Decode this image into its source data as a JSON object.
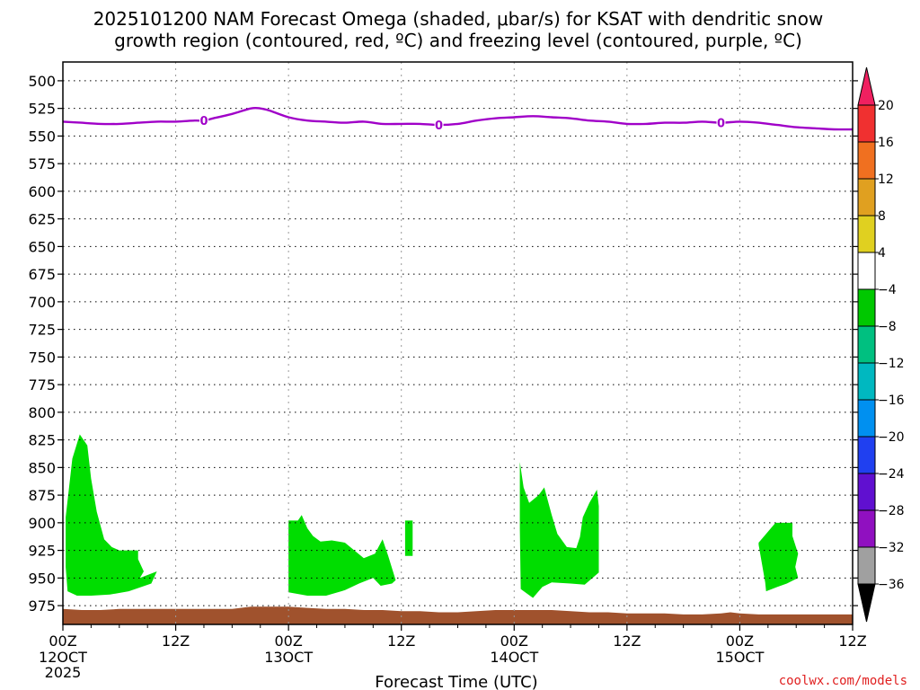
{
  "chart_data": {
    "type": "heatmap",
    "title_line1": "2025101200 NAM Forecast Omega (shaded, μbar/s) for KSAT with dendritic snow",
    "title_line2": "growth region (contoured, red, ºC) and freezing level (contoured, purple, ºC)",
    "xlabel": "Forecast Time (UTC)",
    "credit": "coolwx.com/models",
    "y_ticks": [
      500,
      525,
      550,
      575,
      600,
      625,
      650,
      675,
      700,
      725,
      750,
      775,
      800,
      825,
      850,
      875,
      900,
      925,
      950,
      975
    ],
    "ylim": [
      483,
      992
    ],
    "xlim": [
      0,
      84
    ],
    "x_ticks": [
      {
        "hour": 0,
        "l1": "00Z",
        "l2": "12OCT",
        "l3": "2025"
      },
      {
        "hour": 12,
        "l1": "12Z",
        "l2": "",
        "l3": ""
      },
      {
        "hour": 24,
        "l1": "00Z",
        "l2": "13OCT",
        "l3": ""
      },
      {
        "hour": 36,
        "l1": "12Z",
        "l2": "",
        "l3": ""
      },
      {
        "hour": 48,
        "l1": "00Z",
        "l2": "14OCT",
        "l3": ""
      },
      {
        "hour": 60,
        "l1": "12Z",
        "l2": "",
        "l3": ""
      },
      {
        "hour": 72,
        "l1": "00Z",
        "l2": "15OCT",
        "l3": ""
      },
      {
        "hour": 84,
        "l1": "12Z",
        "l2": "",
        "l3": ""
      }
    ],
    "colorbar": {
      "labels": [
        "20",
        "16",
        "12",
        "8",
        "4",
        "−4",
        "−8",
        "−12",
        "−16",
        "−20",
        "−24",
        "−28",
        "−32",
        "−36"
      ],
      "colors": [
        "#f02060",
        "#f03030",
        "#f07020",
        "#e0a020",
        "#e0d020",
        "#ffffff",
        "#00c800",
        "#00c080",
        "#00b8c0",
        "#0090f0",
        "#2040f0",
        "#6010d0",
        "#9010c0",
        "#a0a0a0",
        "#000000"
      ]
    },
    "freezing_level": {
      "name": "Freezing level (0 ºC)",
      "color": "#a000c8",
      "label": "0",
      "label_hours": [
        15,
        40,
        70
      ],
      "hours": [
        0,
        2,
        4,
        6,
        8,
        10,
        12,
        14,
        15,
        16,
        18,
        20,
        21,
        22,
        24,
        26,
        28,
        30,
        32,
        34,
        36,
        38,
        40,
        42,
        44,
        46,
        48,
        50,
        52,
        54,
        56,
        58,
        60,
        62,
        64,
        66,
        68,
        70,
        72,
        74,
        76,
        78,
        80,
        82,
        84
      ],
      "values": [
        537,
        538,
        539,
        539,
        538,
        537,
        537,
        536,
        536,
        534,
        530,
        525,
        525,
        527,
        533,
        536,
        537,
        538,
        537,
        539,
        539,
        539,
        540,
        539,
        536,
        534,
        533,
        532,
        533,
        534,
        536,
        537,
        539,
        539,
        538,
        538,
        537,
        538,
        537,
        538,
        540,
        542,
        543,
        544,
        544
      ]
    },
    "omega_regions": [
      {
        "level": "-4",
        "color": "#00dd00",
        "hours": [
          0.3,
          1.0,
          1.8,
          2.6,
          3.0,
          3.6,
          4.4,
          5.2,
          6.0,
          7.0,
          8.0,
          8.0,
          8.6,
          8.2,
          10.0,
          9.4,
          7.0,
          5.0,
          3.0,
          1.5,
          0.5,
          0.3
        ],
        "pressures": [
          895,
          842,
          820,
          830,
          860,
          890,
          915,
          922,
          925,
          925,
          925,
          933,
          944,
          950,
          944,
          955,
          962,
          965,
          966,
          966,
          962,
          940
        ]
      },
      {
        "level": "-4",
        "color": "#00dd00",
        "hours": [
          24.0,
          25.0,
          25.4,
          26.0,
          26.6,
          27.4,
          28.6,
          30.0,
          31.0,
          32.0,
          33.2,
          34.0,
          34.6,
          35.4,
          35.0,
          33.8,
          33.0,
          31.5,
          30.0,
          28.0,
          26.0,
          24.0
        ],
        "pressures": [
          898,
          898,
          893,
          905,
          912,
          917,
          916,
          918,
          925,
          932,
          928,
          915,
          930,
          952,
          955,
          957,
          950,
          955,
          961,
          966,
          966,
          963
        ]
      },
      {
        "level": "-4",
        "color": "#00dd00",
        "hours": [
          36.4,
          37.2,
          37.2,
          36.4
        ],
        "pressures": [
          898,
          898,
          930,
          930
        ]
      },
      {
        "level": "-4",
        "color": "#00dd00",
        "hours": [
          48.6,
          49.0,
          49.6,
          50.6,
          51.2,
          52.0,
          52.6,
          53.6,
          54.6,
          55.0,
          55.3,
          56.0,
          56.8,
          57.0,
          57.0,
          55.5,
          54.0,
          52.0,
          51.0,
          50.0,
          48.7,
          48.6
        ],
        "pressures": [
          845,
          868,
          882,
          875,
          868,
          893,
          910,
          922,
          923,
          913,
          895,
          882,
          870,
          885,
          945,
          956,
          955,
          954,
          958,
          968,
          960,
          905
        ]
      },
      {
        "level": "-4",
        "color": "#00dd00",
        "hours": [
          74.0,
          75.8,
          77.6,
          77.6,
          78.2,
          77.9,
          78.2,
          77.0,
          76.0,
          74.8,
          74.7,
          74.0
        ],
        "pressures": [
          918,
          900,
          900,
          912,
          928,
          940,
          950,
          955,
          958,
          962,
          954,
          920
        ]
      }
    ],
    "terrain": {
      "name": "Surface (below ground)",
      "color": "#a0522d",
      "hours": [
        0,
        2,
        4,
        6,
        8,
        10,
        12,
        14,
        16,
        18,
        20,
        22,
        24,
        26,
        28,
        30,
        32,
        34,
        36,
        38,
        40,
        42,
        44,
        46,
        48,
        50,
        52,
        54,
        56,
        58,
        60,
        62,
        64,
        66,
        68,
        70,
        71,
        72,
        74,
        76,
        78,
        80,
        82,
        84
      ],
      "values": [
        978,
        979,
        979,
        978,
        978,
        978,
        978,
        978,
        978,
        978,
        976,
        976,
        976,
        977,
        978,
        978,
        979,
        979,
        980,
        980,
        981,
        981,
        980,
        979,
        979,
        979,
        979,
        980,
        981,
        981,
        982,
        982,
        982,
        983,
        983,
        982,
        981,
        982,
        983,
        983,
        983,
        983,
        983,
        983
      ]
    }
  }
}
